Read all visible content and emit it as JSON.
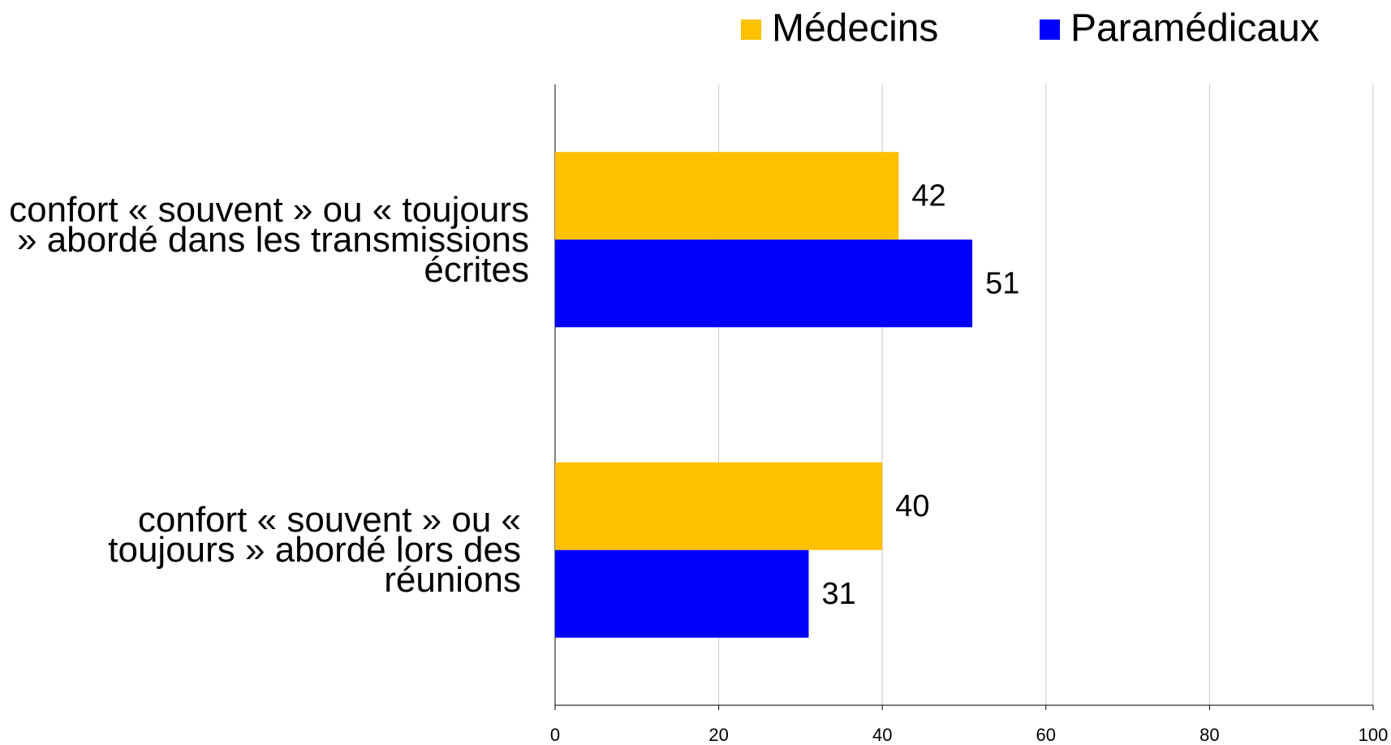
{
  "chart_data": {
    "type": "barh",
    "categories": [
      "confort « souvent » ou « toujours » abordé dans les transmissions écrites",
      "confort « souvent » ou « toujours » abordé lors des réunions"
    ],
    "series": [
      {
        "name": "Médecins",
        "color": "#ffc000",
        "values": [
          42,
          40
        ]
      },
      {
        "name": "Paramédicaux",
        "color": "#0000ff",
        "values": [
          51,
          31
        ]
      }
    ],
    "xlim": [
      0,
      100
    ],
    "xticks": [
      0,
      20,
      40,
      60,
      80,
      100
    ],
    "grid": true,
    "legend": "top-right"
  }
}
